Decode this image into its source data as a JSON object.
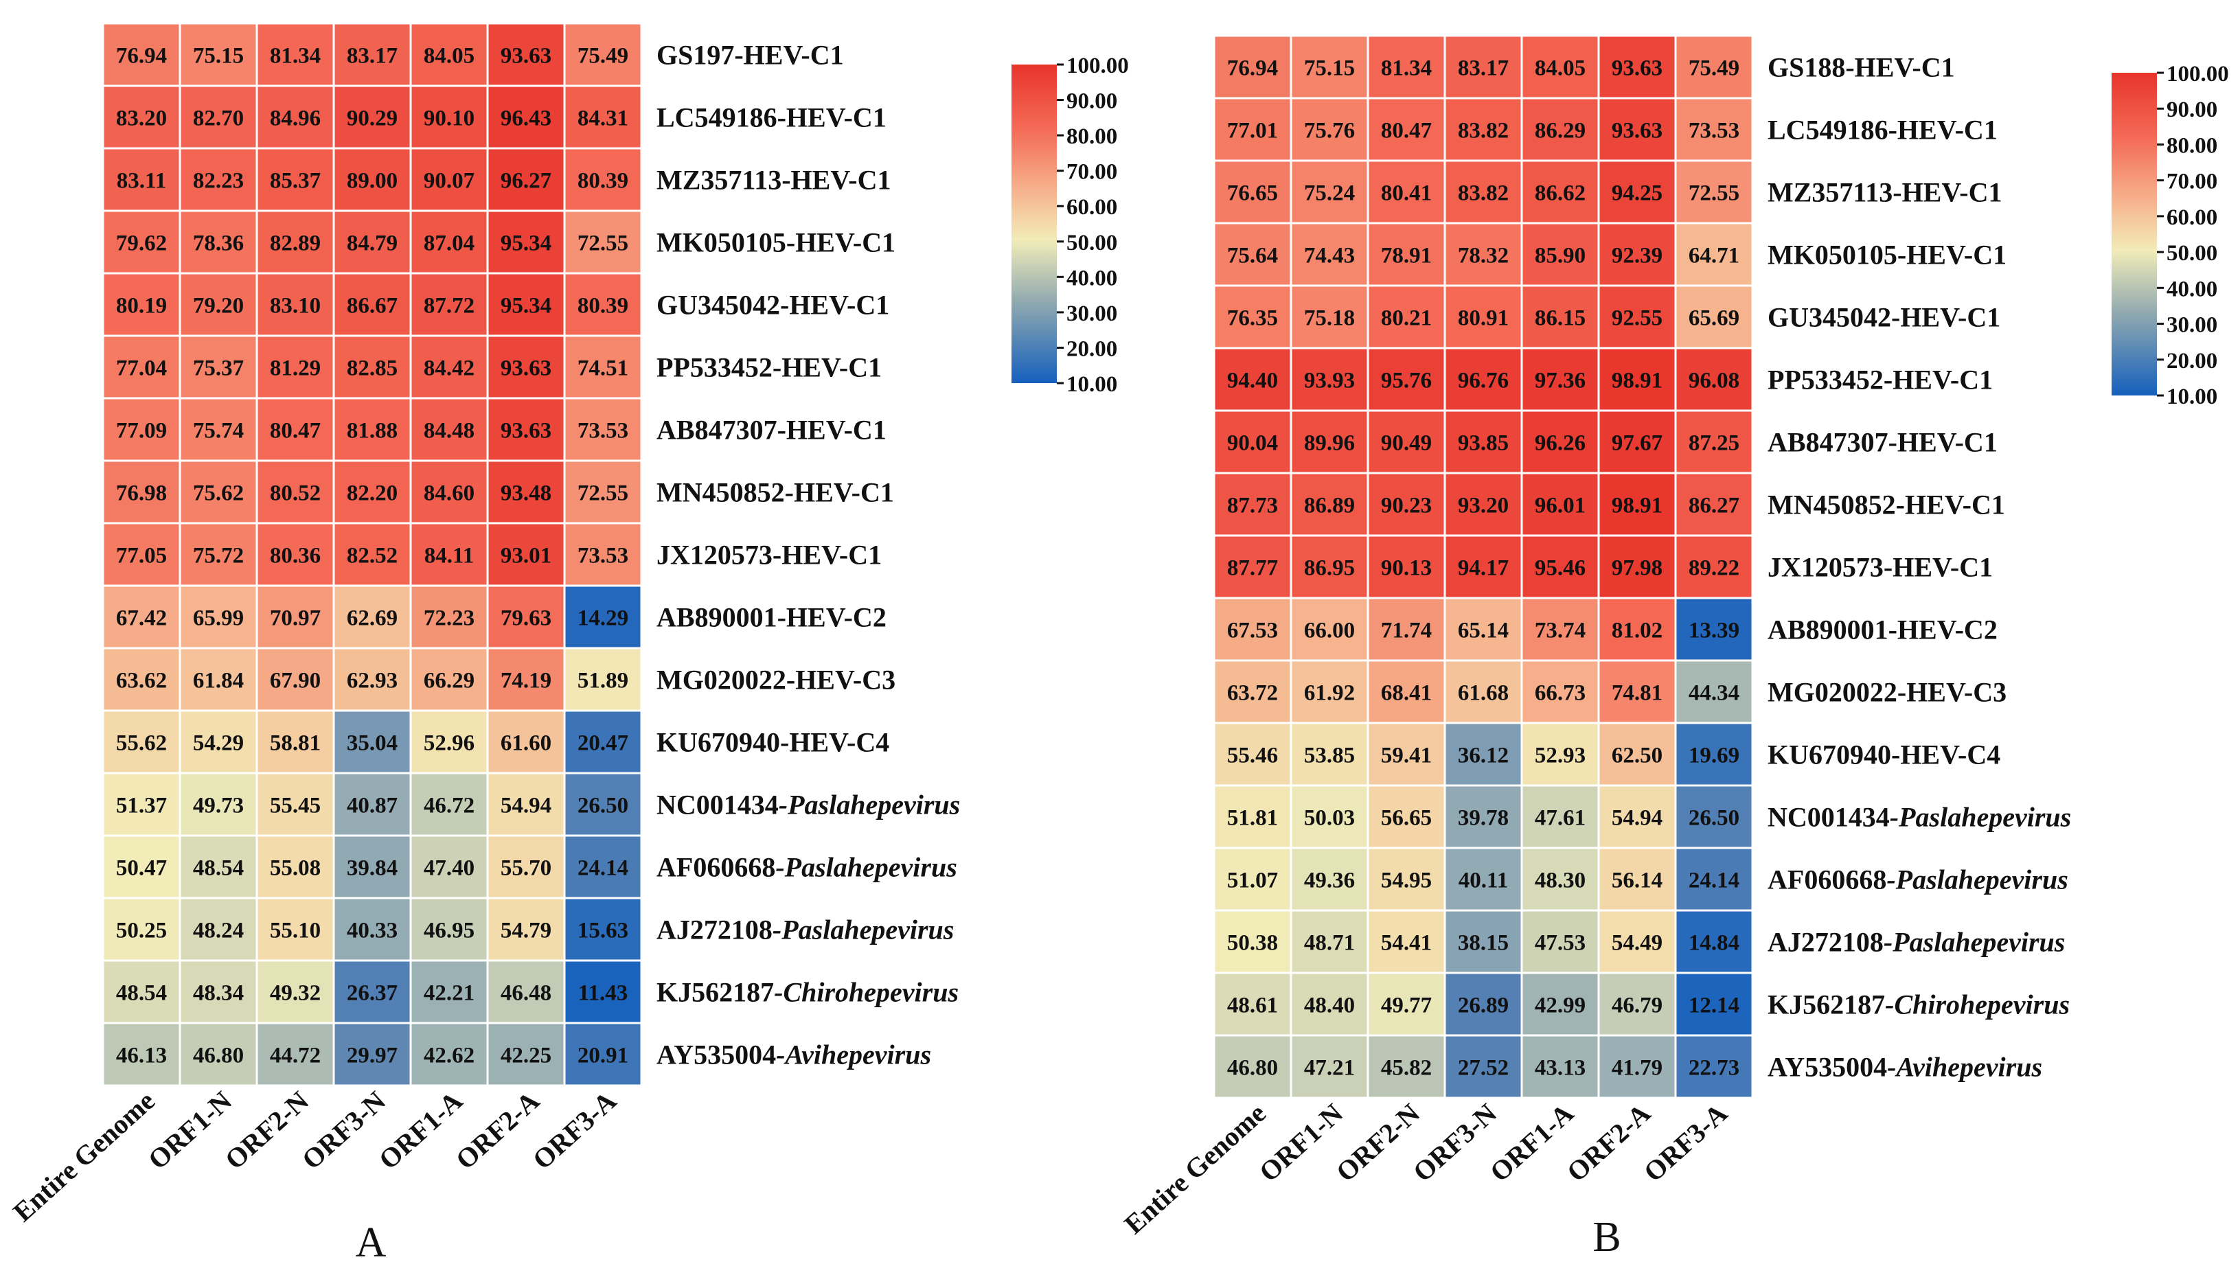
{
  "colors": {
    "scale_low": "#1560bd",
    "scale_mid": "#f2ecb8",
    "scale_high": "#e8342c",
    "grid": "#ffffff"
  },
  "chart_data": [
    {
      "type": "heatmap",
      "panel_label": "A",
      "columns": [
        "Entire Genome",
        "ORF1-N",
        "ORF2-N",
        "ORF3-N",
        "ORF1-A",
        "ORF2-A",
        "ORF3-A"
      ],
      "rows": [
        {
          "id": "GS197",
          "suffix": "-HEV-C1",
          "italic": false
        },
        {
          "id": "LC549186",
          "suffix": "-HEV-C1",
          "italic": false
        },
        {
          "id": "MZ357113",
          "suffix": "-HEV-C1",
          "italic": false
        },
        {
          "id": "MK050105",
          "suffix": "-HEV-C1",
          "italic": false
        },
        {
          "id": "GU345042",
          "suffix": "-HEV-C1",
          "italic": false
        },
        {
          "id": "PP533452",
          "suffix": "-HEV-C1",
          "italic": false
        },
        {
          "id": "AB847307",
          "suffix": "-HEV-C1",
          "italic": false
        },
        {
          "id": "MN450852",
          "suffix": "-HEV-C1",
          "italic": false
        },
        {
          "id": "JX120573",
          "suffix": "-HEV-C1",
          "italic": false
        },
        {
          "id": "AB890001",
          "suffix": "-HEV-C2",
          "italic": false
        },
        {
          "id": "MG020022",
          "suffix": "-HEV-C3",
          "italic": false
        },
        {
          "id": "KU670940",
          "suffix": "-HEV-C4",
          "italic": false
        },
        {
          "id": "NC001434",
          "suffix": "-Paslahepevirus",
          "italic": true
        },
        {
          "id": "AF060668",
          "suffix": "-Paslahepevirus",
          "italic": true
        },
        {
          "id": "AJ272108",
          "suffix": "-Paslahepevirus",
          "italic": true
        },
        {
          "id": "KJ562187",
          "suffix": "-Chirohepevirus",
          "italic": true
        },
        {
          "id": "AY535004",
          "suffix": "-Avihepevirus",
          "italic": true
        }
      ],
      "values": [
        [
          "76.94",
          "75.15",
          "81.34",
          "83.17",
          "84.05",
          "93.63",
          "75.49"
        ],
        [
          "83.20",
          "82.70",
          "84.96",
          "90.29",
          "90.10",
          "96.43",
          "84.31"
        ],
        [
          "83.11",
          "82.23",
          "85.37",
          "89.00",
          "90.07",
          "96.27",
          "80.39"
        ],
        [
          "79.62",
          "78.36",
          "82.89",
          "84.79",
          "87.04",
          "95.34",
          "72.55"
        ],
        [
          "80.19",
          "79.20",
          "83.10",
          "86.67",
          "87.72",
          "95.34",
          "80.39"
        ],
        [
          "77.04",
          "75.37",
          "81.29",
          "82.85",
          "84.42",
          "93.63",
          "74.51"
        ],
        [
          "77.09",
          "75.74",
          "80.47",
          "81.88",
          "84.48",
          "93.63",
          "73.53"
        ],
        [
          "76.98",
          "75.62",
          "80.52",
          "82.20",
          "84.60",
          "93.48",
          "72.55"
        ],
        [
          "77.05",
          "75.72",
          "80.36",
          "82.52",
          "84.11",
          "93.01",
          "73.53"
        ],
        [
          "67.42",
          "65.99",
          "70.97",
          "62.69",
          "72.23",
          "79.63",
          "14.29"
        ],
        [
          "63.62",
          "61.84",
          "67.90",
          "62.93",
          "66.29",
          "74.19",
          "51.89"
        ],
        [
          "55.62",
          "54.29",
          "58.81",
          "35.04",
          "52.96",
          "61.60",
          "20.47"
        ],
        [
          "51.37",
          "49.73",
          "55.45",
          "40.87",
          "46.72",
          "54.94",
          "26.50"
        ],
        [
          "50.47",
          "48.54",
          "55.08",
          "39.84",
          "47.40",
          "55.70",
          "24.14"
        ],
        [
          "50.25",
          "48.24",
          "55.10",
          "40.33",
          "46.95",
          "54.79",
          "15.63"
        ],
        [
          "48.54",
          "48.34",
          "49.32",
          "26.37",
          "42.21",
          "46.48",
          "11.43"
        ],
        [
          "46.13",
          "46.80",
          "44.72",
          "29.97",
          "42.62",
          "42.25",
          "20.91"
        ]
      ],
      "colorbar": {
        "min": 10,
        "max": 100,
        "ticks": [
          "100.00",
          "90.00",
          "80.00",
          "70.00",
          "60.00",
          "50.00",
          "40.00",
          "30.00",
          "20.00",
          "10.00"
        ]
      }
    },
    {
      "type": "heatmap",
      "panel_label": "B",
      "columns": [
        "Entire Genome",
        "ORF1-N",
        "ORF2-N",
        "ORF3-N",
        "ORF1-A",
        "ORF2-A",
        "ORF3-A"
      ],
      "rows": [
        {
          "id": "GS188",
          "suffix": "-HEV-C1",
          "italic": false
        },
        {
          "id": "LC549186",
          "suffix": "-HEV-C1",
          "italic": false
        },
        {
          "id": "MZ357113",
          "suffix": "-HEV-C1",
          "italic": false
        },
        {
          "id": "MK050105",
          "suffix": "-HEV-C1",
          "italic": false
        },
        {
          "id": "GU345042",
          "suffix": "-HEV-C1",
          "italic": false
        },
        {
          "id": "PP533452",
          "suffix": "-HEV-C1",
          "italic": false
        },
        {
          "id": "AB847307",
          "suffix": "-HEV-C1",
          "italic": false
        },
        {
          "id": "MN450852",
          "suffix": "-HEV-C1",
          "italic": false
        },
        {
          "id": "JX120573",
          "suffix": "-HEV-C1",
          "italic": false
        },
        {
          "id": "AB890001",
          "suffix": "-HEV-C2",
          "italic": false
        },
        {
          "id": "MG020022",
          "suffix": "-HEV-C3",
          "italic": false
        },
        {
          "id": "KU670940",
          "suffix": "-HEV-C4",
          "italic": false
        },
        {
          "id": "NC001434",
          "suffix": "-Paslahepevirus",
          "italic": true
        },
        {
          "id": "AF060668",
          "suffix": "-Paslahepevirus",
          "italic": true
        },
        {
          "id": "AJ272108",
          "suffix": "-Paslahepevirus",
          "italic": true
        },
        {
          "id": "KJ562187",
          "suffix": "-Chirohepevirus",
          "italic": true
        },
        {
          "id": "AY535004",
          "suffix": "-Avihepevirus",
          "italic": true
        }
      ],
      "values": [
        [
          "76.94",
          "75.15",
          "81.34",
          "83.17",
          "84.05",
          "93.63",
          "75.49"
        ],
        [
          "77.01",
          "75.76",
          "80.47",
          "83.82",
          "86.29",
          "93.63",
          "73.53"
        ],
        [
          "76.65",
          "75.24",
          "80.41",
          "83.82",
          "86.62",
          "94.25",
          "72.55"
        ],
        [
          "75.64",
          "74.43",
          "78.91",
          "78.32",
          "85.90",
          "92.39",
          "64.71"
        ],
        [
          "76.35",
          "75.18",
          "80.21",
          "80.91",
          "86.15",
          "92.55",
          "65.69"
        ],
        [
          "94.40",
          "93.93",
          "95.76",
          "96.76",
          "97.36",
          "98.91",
          "96.08"
        ],
        [
          "90.04",
          "89.96",
          "90.49",
          "93.85",
          "96.26",
          "97.67",
          "87.25"
        ],
        [
          "87.73",
          "86.89",
          "90.23",
          "93.20",
          "96.01",
          "98.91",
          "86.27"
        ],
        [
          "87.77",
          "86.95",
          "90.13",
          "94.17",
          "95.46",
          "97.98",
          "89.22"
        ],
        [
          "67.53",
          "66.00",
          "71.74",
          "65.14",
          "73.74",
          "81.02",
          "13.39"
        ],
        [
          "63.72",
          "61.92",
          "68.41",
          "61.68",
          "66.73",
          "74.81",
          "44.34"
        ],
        [
          "55.46",
          "53.85",
          "59.41",
          "36.12",
          "52.93",
          "62.50",
          "19.69"
        ],
        [
          "51.81",
          "50.03",
          "56.65",
          "39.78",
          "47.61",
          "54.94",
          "26.50"
        ],
        [
          "51.07",
          "49.36",
          "54.95",
          "40.11",
          "48.30",
          "56.14",
          "24.14"
        ],
        [
          "50.38",
          "48.71",
          "54.41",
          "38.15",
          "47.53",
          "54.49",
          "14.84"
        ],
        [
          "48.61",
          "48.40",
          "49.77",
          "26.89",
          "42.99",
          "46.79",
          "12.14"
        ],
        [
          "46.80",
          "47.21",
          "45.82",
          "27.52",
          "43.13",
          "41.79",
          "22.73"
        ]
      ],
      "colorbar": {
        "min": 10,
        "max": 100,
        "ticks": [
          "100.00",
          "90.00",
          "80.00",
          "70.00",
          "60.00",
          "50.00",
          "40.00",
          "30.00",
          "20.00",
          "10.00"
        ]
      }
    }
  ]
}
